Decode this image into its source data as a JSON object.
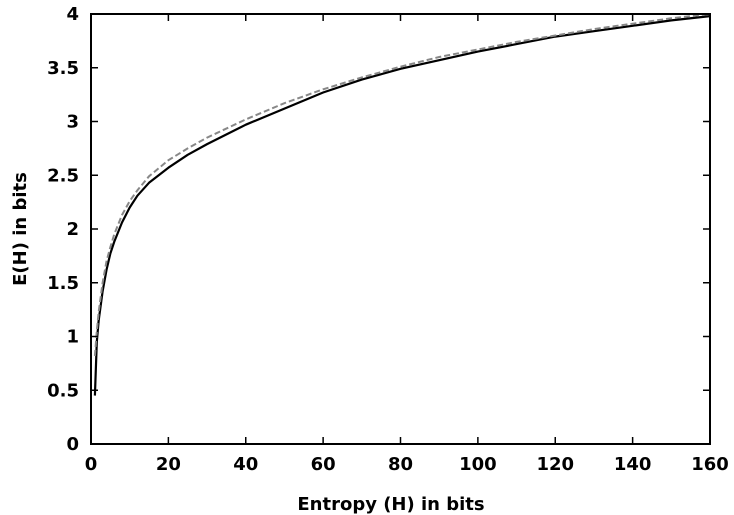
{
  "chart_data": {
    "type": "line",
    "title": "",
    "xlabel": "Entropy (H) in bits",
    "ylabel": "E(H) in bits",
    "xlim": [
      0,
      160
    ],
    "ylim": [
      0,
      4
    ],
    "x_ticks": [
      0,
      20,
      40,
      60,
      80,
      100,
      120,
      140,
      160
    ],
    "x_tick_labels": [
      "0",
      "20",
      "40",
      "60",
      "80",
      "100",
      "120",
      "140",
      "160"
    ],
    "y_ticks": [
      0,
      0.5,
      1,
      1.5,
      2,
      2.5,
      3,
      3.5,
      4
    ],
    "y_tick_labels": [
      "0",
      "0.5",
      "1",
      "1.5",
      "2",
      "2.5",
      "3",
      "3.5",
      "4"
    ],
    "grid": false,
    "legend": "none",
    "series": [
      {
        "style": "solid",
        "color": "#000000",
        "x": [
          1,
          1.5,
          2,
          3,
          4,
          5,
          6,
          8,
          10,
          12,
          15,
          20,
          25,
          30,
          40,
          50,
          60,
          70,
          80,
          90,
          100,
          110,
          120,
          130,
          140,
          150,
          160
        ],
        "y": [
          0.45,
          0.95,
          1.15,
          1.42,
          1.62,
          1.77,
          1.88,
          2.06,
          2.2,
          2.31,
          2.43,
          2.57,
          2.69,
          2.79,
          2.97,
          3.12,
          3.27,
          3.39,
          3.49,
          3.57,
          3.65,
          3.72,
          3.79,
          3.84,
          3.89,
          3.94,
          3.98
        ]
      },
      {
        "style": "dashed",
        "color": "#888888",
        "x": [
          1,
          1.5,
          2,
          3,
          4,
          5,
          6,
          8,
          10,
          12,
          15,
          20,
          25,
          30,
          40,
          50,
          60,
          70,
          80,
          90,
          100,
          110,
          120,
          130,
          140,
          150,
          160
        ],
        "y": [
          0.82,
          1.05,
          1.23,
          1.5,
          1.7,
          1.83,
          1.95,
          2.13,
          2.26,
          2.36,
          2.49,
          2.64,
          2.75,
          2.85,
          3.02,
          3.17,
          3.3,
          3.41,
          3.51,
          3.6,
          3.67,
          3.74,
          3.8,
          3.86,
          3.91,
          3.96,
          4.0
        ]
      }
    ]
  }
}
